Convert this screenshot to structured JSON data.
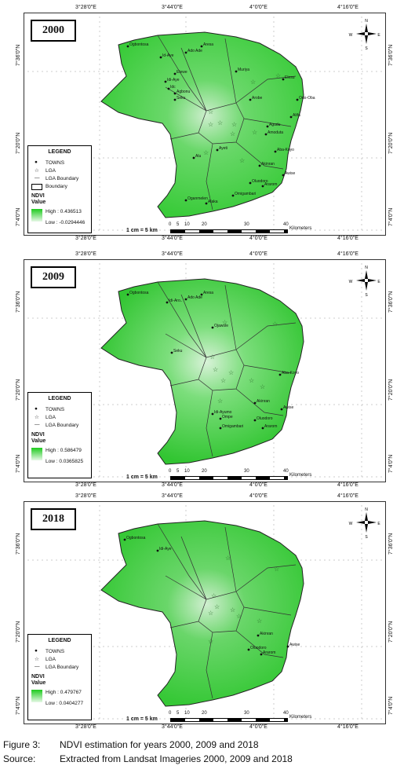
{
  "coords": {
    "top": [
      "3°28'0\"E",
      "3°44'0\"E",
      "4°0'0\"E",
      "4°16'0\"E"
    ],
    "side": [
      "7°36'0\"N",
      "7°20'0\"N",
      "7°4'0\"N"
    ]
  },
  "panels": [
    {
      "year": "2000",
      "legend": {
        "title": "LEGEND",
        "towns": "TOWNS",
        "lga": "LGA",
        "lga_boundary": "LGA Boundary",
        "boundary": "Boundary",
        "ndvi": "NDVI",
        "value": "Value",
        "high": "High : 0.436513",
        "low": "Low : -0.0294446"
      },
      "towns": [
        "Ogbontosa",
        "Ado Ade",
        "Aresa",
        "Id-Aye",
        "Elewe",
        "Idi-Aye",
        "Idc",
        "Agbonu",
        "Seku",
        "Muriya",
        "Elesu",
        "Arobe",
        "Odo-Oba",
        "Alifa",
        "Agudu",
        "Amoduta",
        "Aba-Koyo",
        "Alu",
        "Ayeti",
        "Akinran",
        "Awise",
        "Oluodoro",
        "Ararom",
        "Omigambari",
        "Oganmelen",
        "Alaka"
      ]
    },
    {
      "year": "2009",
      "legend": {
        "title": "LEGEND",
        "towns": "TOWNS",
        "lga": "LGA",
        "lga_boundary": "LGA Boundary",
        "ndvi": "NDVI",
        "value": "Value",
        "high": "High : 0.586479",
        "low": "Low : 0.0365825"
      },
      "towns": [
        "Ogbontosa",
        "Ado Ade",
        "Aresa",
        "Idi-Aro..",
        "Ojawole",
        "Seku",
        "Aba-Koyo",
        "Akinran",
        "Awise",
        "Idi-Ayumo",
        "Ompe",
        "Oluodoro",
        "Omigambari",
        "Ararom"
      ]
    },
    {
      "year": "2018",
      "legend": {
        "title": "LEGEND",
        "towns": "TOWNS",
        "lga": "LGA",
        "lga_boundary": "LGA Boundary",
        "ndvi": "NDVI",
        "value": "Value",
        "high": "High : 0.479767",
        "low": "Low : 0.0404277"
      },
      "towns": [
        "Ogbontosa",
        "Idi-Aye",
        "Akinran",
        "Awise",
        "Oluodoro",
        "Ararom"
      ]
    }
  ],
  "scale": {
    "label": "1 cm = 5 km",
    "ticks": [
      "0",
      "5",
      "10",
      "20",
      "30",
      "40"
    ],
    "unit": "Kilometers"
  },
  "compass": {
    "n": "N",
    "s": "S",
    "e": "E",
    "w": "W"
  },
  "caption": {
    "fig_label": "Figure 3:",
    "fig_text": "NDVI estimation for years 2000, 2009 and 2018",
    "src_label": "Source:",
    "src_text": "Extracted from Landsat Imageries 2000, 2009 and 2018"
  }
}
